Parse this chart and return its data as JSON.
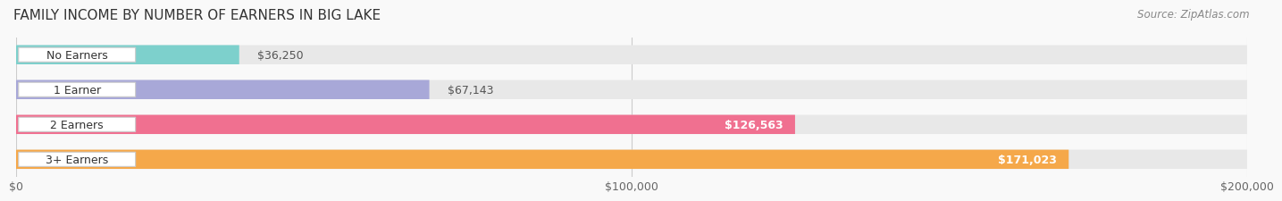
{
  "title": "FAMILY INCOME BY NUMBER OF EARNERS IN BIG LAKE",
  "source": "Source: ZipAtlas.com",
  "categories": [
    "No Earners",
    "1 Earner",
    "2 Earners",
    "3+ Earners"
  ],
  "values": [
    36250,
    67143,
    126563,
    171023
  ],
  "labels": [
    "$36,250",
    "$67,143",
    "$126,563",
    "$171,023"
  ],
  "bar_colors": [
    "#7dd0cc",
    "#a8a8d8",
    "#f07090",
    "#f5a84a"
  ],
  "bar_bg_color": "#e8e8e8",
  "max_value": 200000,
  "xtick_labels": [
    "$0",
    "$100,000",
    "$200,000"
  ],
  "xtick_values": [
    0,
    100000,
    200000
  ],
  "bg_color": "#f9f9f9",
  "title_fontsize": 11,
  "source_fontsize": 8.5,
  "label_fontsize": 9,
  "category_fontsize": 9,
  "label_inside_threshold": 80000
}
